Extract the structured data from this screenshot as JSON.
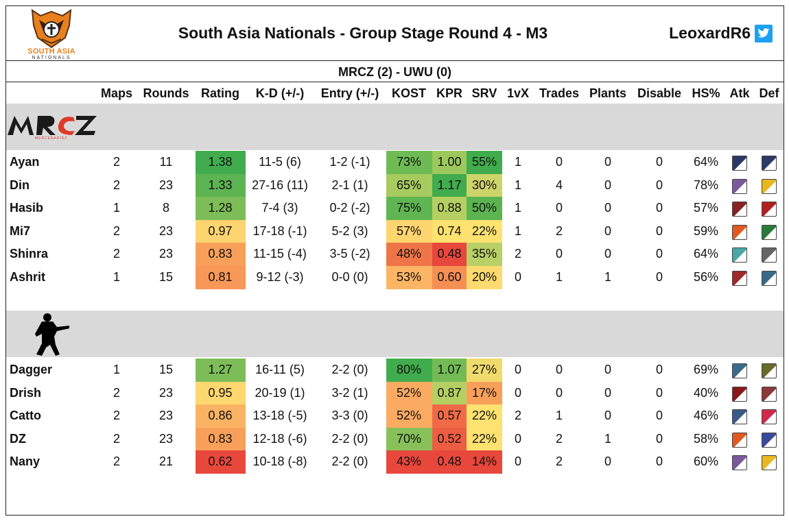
{
  "header": {
    "title": "South Asia Nationals - Group Stage Round 4 - M3",
    "handle": "LeoxardR6",
    "logo_text_top": "SOUTH ASIA",
    "logo_text_bottom": "NATIONALS"
  },
  "match": {
    "result": "MRCZ (2) - UWU (0)"
  },
  "columns": [
    "Maps",
    "Rounds",
    "Rating",
    "K-D (+/-)",
    "Entry (+/-)",
    "KOST",
    "KPR",
    "SRV",
    "1vX",
    "Trades",
    "Plants",
    "Disable",
    "HS%",
    "Atk",
    "Def"
  ],
  "teams": [
    {
      "logo_text": "MRCZ",
      "logo_subtext": "MERCENARIEZ",
      "players": [
        {
          "name": "Ayan",
          "maps": "2",
          "rounds": "11",
          "rating": "1.38",
          "kd": "11-5 (6)",
          "entry": "1-2 (-1)",
          "kost": "73%",
          "kpr": "1.00",
          "srv": "55%",
          "onevx": "1",
          "trades": "0",
          "plants": "0",
          "disable": "0",
          "hs": "64%",
          "atk_icon": "operator-atk-icon",
          "def_icon": "operator-def-icon",
          "c_rating": "#41ac4d",
          "c_kost": "#6ebb54",
          "c_kpr": "#9cc85c",
          "c_srv": "#41ac4d",
          "atk_color": "#2b3a67",
          "def_color": "#2b3a67"
        },
        {
          "name": "Din",
          "maps": "2",
          "rounds": "23",
          "rating": "1.33",
          "kd": "27-16 (11)",
          "entry": "2-1 (1)",
          "kost": "65%",
          "kpr": "1.17",
          "srv": "30%",
          "onevx": "1",
          "trades": "4",
          "plants": "0",
          "disable": "0",
          "hs": "78%",
          "atk_icon": "operator-atk-icon",
          "def_icon": "operator-def-icon",
          "c_rating": "#5db452",
          "c_kost": "#a8cb5f",
          "c_kpr": "#41ac4d",
          "c_srv": "#cdd469",
          "atk_color": "#7a5a9a",
          "def_color": "#e8b820"
        },
        {
          "name": "Hasib",
          "maps": "1",
          "rounds": "8",
          "rating": "1.28",
          "kd": "7-4 (3)",
          "entry": "0-2 (-2)",
          "kost": "75%",
          "kpr": "0.88",
          "srv": "50%",
          "onevx": "1",
          "trades": "0",
          "plants": "0",
          "disable": "0",
          "hs": "57%",
          "atk_icon": "operator-atk-icon",
          "def_icon": "operator-def-icon",
          "c_rating": "#7dbd57",
          "c_kost": "#5fb552",
          "c_kpr": "#b5cf62",
          "c_srv": "#5cb451",
          "atk_color": "#8a2222",
          "def_color": "#b02020"
        },
        {
          "name": "Mi7",
          "maps": "2",
          "rounds": "23",
          "rating": "0.97",
          "kd": "17-18 (-1)",
          "entry": "5-2 (3)",
          "kost": "57%",
          "kpr": "0.74",
          "srv": "22%",
          "onevx": "1",
          "trades": "2",
          "plants": "0",
          "disable": "0",
          "hs": "59%",
          "atk_icon": "operator-atk-icon",
          "def_icon": "operator-def-icon",
          "c_rating": "#fdd46f",
          "c_kost": "#fed56f",
          "c_kpr": "#fde270",
          "c_srv": "#fde270",
          "atk_color": "#e05a20",
          "def_color": "#2a7a3a"
        },
        {
          "name": "Shinra",
          "maps": "2",
          "rounds": "23",
          "rating": "0.83",
          "kd": "11-15 (-4)",
          "entry": "3-5 (-2)",
          "kost": "48%",
          "kpr": "0.48",
          "srv": "35%",
          "onevx": "2",
          "trades": "0",
          "plants": "0",
          "disable": "0",
          "hs": "64%",
          "atk_icon": "operator-atk-icon",
          "def_icon": "operator-def-icon",
          "c_rating": "#f8a05a",
          "c_kost": "#ef7548",
          "c_kpr": "#e8473c",
          "c_srv": "#b8d066",
          "atk_color": "#4aa8a8",
          "def_color": "#666666"
        },
        {
          "name": "Ashrit",
          "maps": "1",
          "rounds": "15",
          "rating": "0.81",
          "kd": "9-12 (-3)",
          "entry": "0-0 (0)",
          "kost": "53%",
          "kpr": "0.60",
          "srv": "20%",
          "onevx": "0",
          "trades": "1",
          "plants": "1",
          "disable": "0",
          "hs": "56%",
          "atk_icon": "operator-atk-icon",
          "def_icon": "operator-def-icon",
          "c_rating": "#f79859",
          "c_kost": "#fbb564",
          "c_kpr": "#f58f54",
          "c_srv": "#fdda6f",
          "atk_color": "#a02a2a",
          "def_color": "#3a6a8a"
        }
      ]
    },
    {
      "logo_text": "",
      "players": [
        {
          "name": "Dagger",
          "maps": "1",
          "rounds": "15",
          "rating": "1.27",
          "kd": "16-11 (5)",
          "entry": "2-2 (0)",
          "kost": "80%",
          "kpr": "1.07",
          "srv": "27%",
          "onevx": "0",
          "trades": "0",
          "plants": "0",
          "disable": "0",
          "hs": "69%",
          "atk_icon": "operator-atk-icon",
          "def_icon": "operator-def-icon",
          "c_rating": "#7dbd57",
          "c_kost": "#41ac4d",
          "c_kpr": "#74bb56",
          "c_srv": "#f0da6c",
          "atk_color": "#3a6a8a",
          "def_color": "#6a6a2a"
        },
        {
          "name": "Drish",
          "maps": "2",
          "rounds": "23",
          "rating": "0.95",
          "kd": "20-19 (1)",
          "entry": "3-2 (1)",
          "kost": "52%",
          "kpr": "0.87",
          "srv": "17%",
          "onevx": "0",
          "trades": "0",
          "plants": "0",
          "disable": "0",
          "hs": "40%",
          "atk_icon": "operator-atk-icon",
          "def_icon": "operator-def-icon",
          "c_rating": "#fdd76f",
          "c_kost": "#fbaa61",
          "c_kpr": "#b5cf62",
          "c_srv": "#f8a05a",
          "atk_color": "#8a1a1a",
          "def_color": "#8a3a3a"
        },
        {
          "name": "Catto",
          "maps": "2",
          "rounds": "23",
          "rating": "0.86",
          "kd": "13-18 (-5)",
          "entry": "3-3 (0)",
          "kost": "52%",
          "kpr": "0.57",
          "srv": "22%",
          "onevx": "2",
          "trades": "1",
          "plants": "0",
          "disable": "0",
          "hs": "46%",
          "atk_icon": "operator-atk-icon",
          "def_icon": "operator-def-icon",
          "c_rating": "#fab363",
          "c_kost": "#fbaa61",
          "c_kpr": "#f06a47",
          "c_srv": "#fde270",
          "atk_color": "#3a5a8a",
          "def_color": "#d02a4a"
        },
        {
          "name": "DZ",
          "maps": "2",
          "rounds": "23",
          "rating": "0.83",
          "kd": "12-18 (-6)",
          "entry": "2-2 (0)",
          "kost": "70%",
          "kpr": "0.52",
          "srv": "22%",
          "onevx": "0",
          "trades": "2",
          "plants": "1",
          "disable": "0",
          "hs": "58%",
          "atk_icon": "operator-atk-icon",
          "def_icon": "operator-def-icon",
          "c_rating": "#f8a05a",
          "c_kost": "#88c05a",
          "c_kpr": "#ec5d42",
          "c_srv": "#fde270",
          "atk_color": "#e05a20",
          "def_color": "#3a4a9a"
        },
        {
          "name": "Nany",
          "maps": "2",
          "rounds": "21",
          "rating": "0.62",
          "kd": "10-18 (-8)",
          "entry": "2-2 (0)",
          "kost": "43%",
          "kpr": "0.48",
          "srv": "14%",
          "onevx": "0",
          "trades": "2",
          "plants": "0",
          "disable": "0",
          "hs": "60%",
          "atk_icon": "operator-atk-icon",
          "def_icon": "operator-def-icon",
          "c_rating": "#e8473c",
          "c_kost": "#e8473c",
          "c_kpr": "#e8473c",
          "c_srv": "#e8473c",
          "atk_color": "#7a5a9a",
          "def_color": "#e8b820"
        }
      ]
    }
  ]
}
